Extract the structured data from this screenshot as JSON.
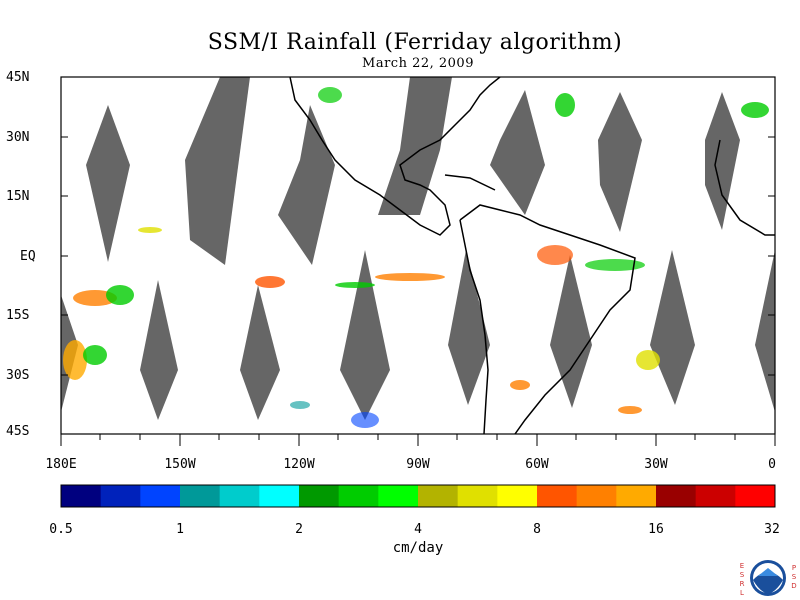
{
  "title": "SSM/I Rainfall (Ferriday algorithm)",
  "date": "March 22, 2009",
  "lat_labels": [
    "45N",
    "30N",
    "15N",
    "EQ",
    "15S",
    "30S",
    "45S"
  ],
  "lon_labels": [
    "180E",
    "150W",
    "120W",
    "90W",
    "60W",
    "30W",
    "0"
  ],
  "colorbar": {
    "unit": "cm/day",
    "tick_labels": [
      "0.5",
      "1",
      "2",
      "4",
      "8",
      "16",
      "32"
    ],
    "colors": [
      "#00007f",
      "#0022bb",
      "#0044ff",
      "#009999",
      "#00cccc",
      "#00ffff",
      "#009900",
      "#00cc00",
      "#00ff00",
      "#b3b300",
      "#e0e000",
      "#ffff00",
      "#ff5500",
      "#ff8000",
      "#ffaa00",
      "#990000",
      "#cc0000",
      "#ff0000"
    ]
  },
  "missing_color": "#666666",
  "logo": {
    "left_text": "ESRL",
    "right_text": "PSD",
    "icon": "noaa-logo-icon"
  }
}
